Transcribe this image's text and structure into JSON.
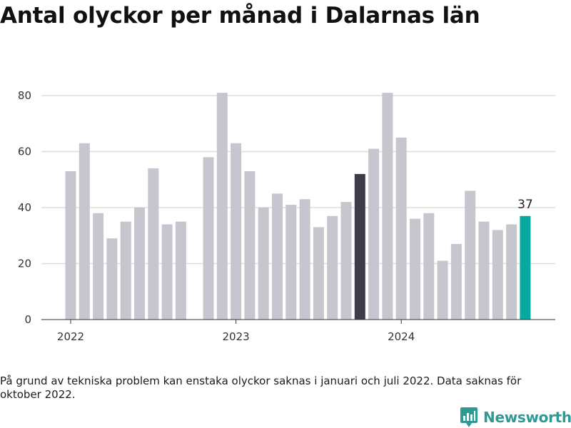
{
  "title": "Antal olyckor per månad i Dalarnas län",
  "footnote": "På grund av tekniska problem kan enstaka olyckor saknas i januari och juli 2022. Data saknas för oktober 2022.",
  "brand": {
    "name": "Newsworthy",
    "icon": "newsworthy-logo-icon",
    "color": "#2f9a93"
  },
  "colors": {
    "default": "#c7c6cf",
    "highlight": "#3e3c48",
    "latest": "#0aa89e",
    "grid": "#dddddd",
    "axis": "#333333"
  },
  "chart_data": {
    "type": "bar",
    "title": "Antal olyckor per månad i Dalarnas län",
    "xlabel": "",
    "ylabel": "",
    "ylim": [
      0,
      80
    ],
    "yticks": [
      0,
      20,
      40,
      60,
      80
    ],
    "grid": true,
    "x_tick_labels": [
      {
        "label": "2022",
        "index": 0
      },
      {
        "label": "2023",
        "index": 12
      },
      {
        "label": "2024",
        "index": 24
      }
    ],
    "categories": [
      "2022-01",
      "2022-02",
      "2022-03",
      "2022-04",
      "2022-05",
      "2022-06",
      "2022-07",
      "2022-08",
      "2022-09",
      "2022-10",
      "2022-11",
      "2022-12",
      "2023-01",
      "2023-02",
      "2023-03",
      "2023-04",
      "2023-05",
      "2023-06",
      "2023-07",
      "2023-08",
      "2023-09",
      "2023-10",
      "2023-11",
      "2023-12",
      "2024-01",
      "2024-02",
      "2024-03",
      "2024-04",
      "2024-05",
      "2024-06",
      "2024-07",
      "2024-08",
      "2024-09",
      "2024-10"
    ],
    "values": [
      53,
      63,
      38,
      29,
      35,
      40,
      54,
      34,
      35,
      null,
      58,
      81,
      63,
      53,
      40,
      45,
      41,
      43,
      33,
      37,
      42,
      52,
      61,
      81,
      65,
      36,
      38,
      21,
      27,
      46,
      35,
      32,
      34,
      37
    ],
    "highlight_index": 21,
    "latest_index": 33,
    "data_labels": [
      {
        "index": 33,
        "label": "37"
      }
    ]
  }
}
